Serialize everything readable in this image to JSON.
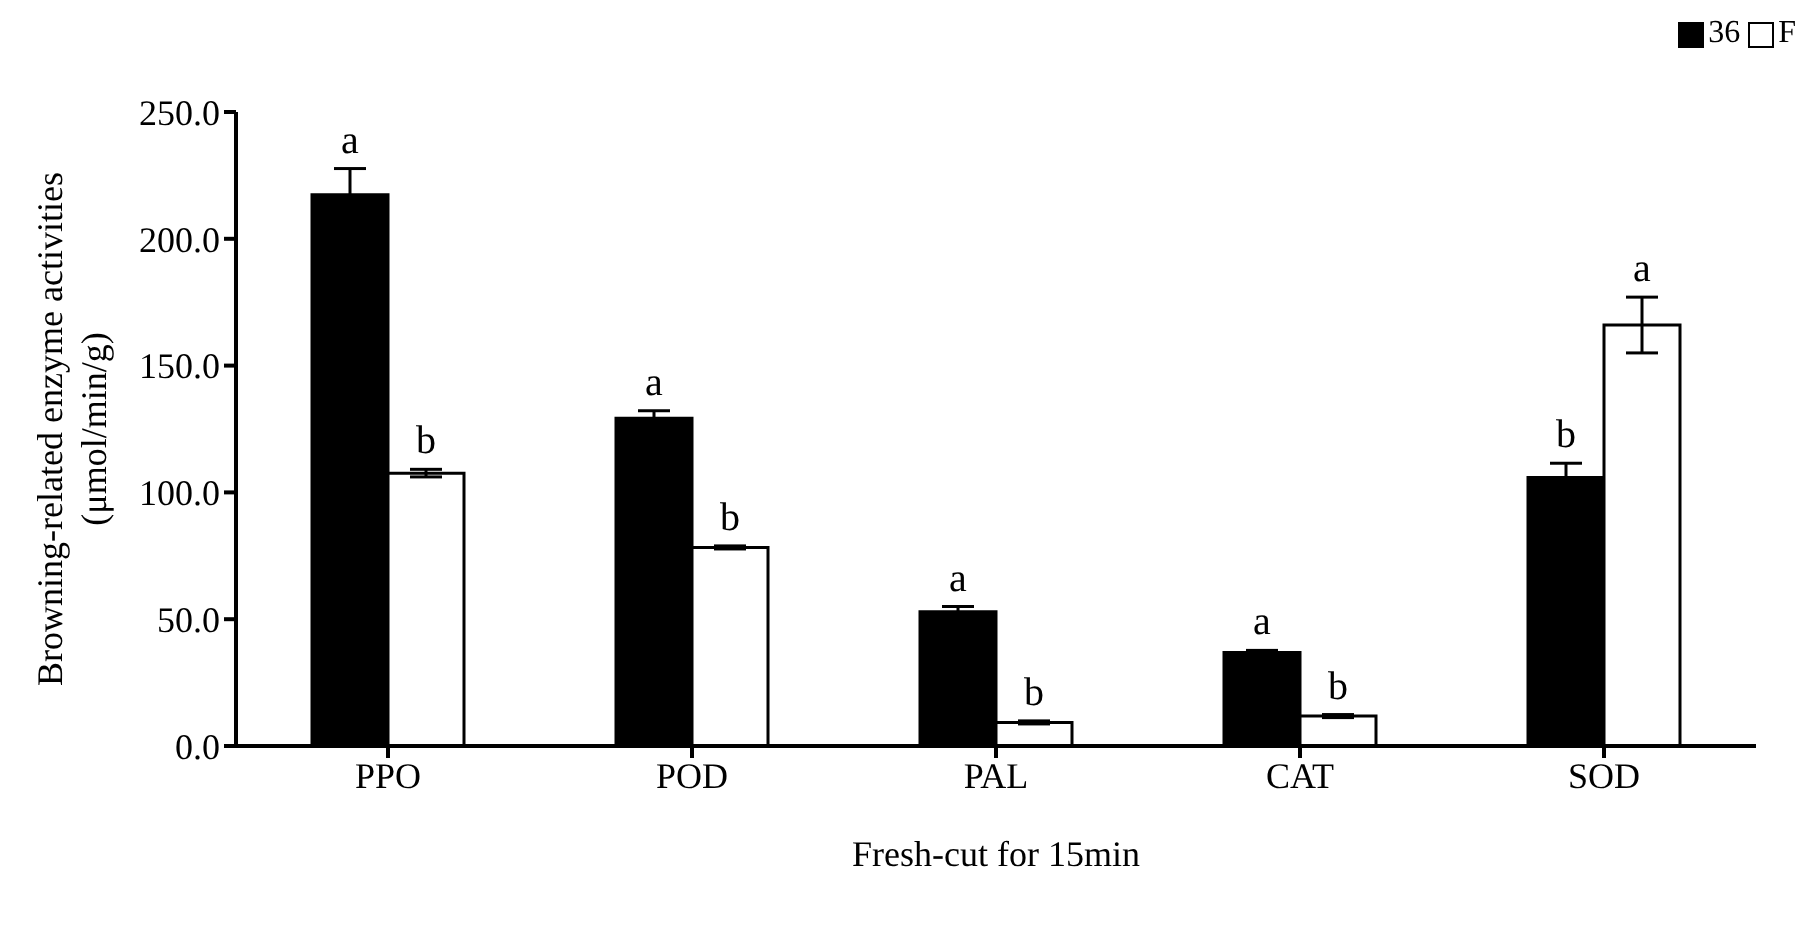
{
  "chart_data": {
    "type": "bar",
    "xlabel": "Fresh-cut for 15min",
    "ylabel": "Browning-related enzyme activities\n(μmol/min/g)",
    "categories": [
      "PPO",
      "POD",
      "PAL",
      "CAT",
      "SOD"
    ],
    "series": [
      {
        "name": "36",
        "color": "#000000",
        "values": [
          217.4,
          129.2,
          52.9,
          36.9,
          105.9
        ],
        "errors": [
          10.3,
          3,
          2.1,
          0.8,
          5.6
        ],
        "value_labels": [
          "a",
          "a",
          "a",
          "a",
          "b"
        ]
      },
      {
        "name": "F",
        "color": "#ffffff",
        "values": [
          107.6,
          78.3,
          9.3,
          11.8,
          166
        ],
        "errors": [
          1.5,
          0.6,
          0.6,
          0.6,
          11
        ],
        "value_labels": [
          "b",
          "b",
          "b",
          "b",
          "a"
        ]
      }
    ],
    "ylim": [
      0,
      250
    ],
    "yticks": [
      {
        "value": 0,
        "label": "0.0"
      },
      {
        "value": 50,
        "label": "50.0"
      },
      {
        "value": 100,
        "label": "100.0"
      },
      {
        "value": 150,
        "label": "150.0"
      },
      {
        "value": 200,
        "label": "200.0"
      },
      {
        "value": 250,
        "label": "250.0"
      }
    ],
    "grid": false,
    "legend": "top right"
  }
}
